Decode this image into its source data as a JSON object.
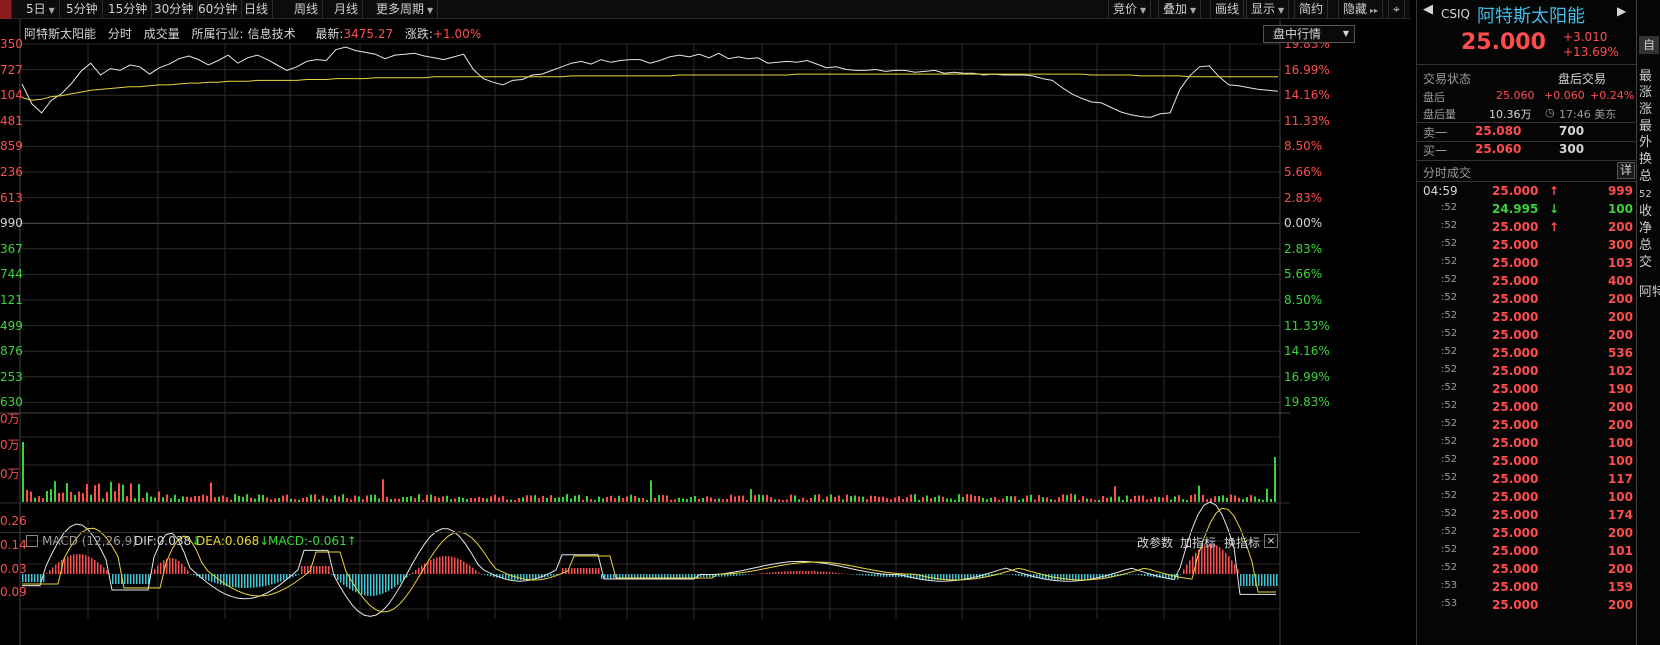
{
  "toolbar": {
    "left_items": [
      {
        "label": "",
        "active": true
      },
      {
        "label": "5日",
        "caret": true
      },
      {
        "label": "5分钟"
      },
      {
        "label": "15分钟"
      },
      {
        "label": "30分钟"
      },
      {
        "label": "60分钟"
      },
      {
        "label": "日线"
      },
      {
        "label": "周线"
      },
      {
        "label": "月线"
      },
      {
        "label": "更多周期",
        "caret": true
      }
    ],
    "right_items": [
      {
        "label": "竞价",
        "caret": true
      },
      {
        "label": "叠加",
        "caret": true
      },
      {
        "label": "画线"
      },
      {
        "label": "显示",
        "caret": true
      },
      {
        "label": "简约"
      },
      {
        "label": "隐藏",
        "suffix": "▸▸"
      },
      {
        "label": "⌖"
      }
    ]
  },
  "info": {
    "name": "阿特斯太阳能",
    "mode": "分时",
    "volume_label": "成交量",
    "industry_label": "所属行业:",
    "industry": "信息技术",
    "latest_label": "最新:",
    "latest": "3475.27",
    "change_label": "涨跌:",
    "change": "+1.00%"
  },
  "mode_select": "盘中行情",
  "left_axis": [
    "350",
    "727",
    "104",
    "481",
    "859",
    "236",
    "613",
    "990",
    "367",
    "744",
    "121",
    "499",
    "876",
    "253",
    "630"
  ],
  "right_axis": [
    "19.83%",
    "16.99%",
    "14.16%",
    "11.33%",
    "8.50%",
    "5.66%",
    "2.83%",
    "0.00%",
    "2.83%",
    "5.66%",
    "8.50%",
    "11.33%",
    "14.16%",
    "16.99%",
    "19.83%"
  ],
  "volume_axis": [
    "0万",
    "0万",
    "0万"
  ],
  "macd": {
    "title": "MACD (12,26,9)",
    "dif_label": "DIF:",
    "dif": "0.038",
    "dea_label": "DEA:",
    "dea": "0.068",
    "macd_label": "MACD:",
    "macd": "-0.061",
    "axis": [
      "0.26",
      "0.14",
      "0.03",
      "0.09"
    ],
    "buttons": [
      "改参数",
      "加指标",
      "换指标"
    ]
  },
  "chart_data": {
    "type": "line",
    "series": [
      {
        "name": "price",
        "values": [
          15.4,
          13.2,
          12.2,
          13.6,
          14.3,
          15.4,
          16.8,
          17.7,
          16.4,
          17.1,
          16.9,
          17.5,
          17.3,
          16.5,
          17.2,
          17.6,
          18.2,
          18.5,
          18.1,
          17.5,
          18.0,
          18.6,
          17.7,
          18.3,
          18.6,
          18.1,
          17.5,
          16.9,
          17.3,
          17.9,
          18.1,
          18.0,
          19.2,
          19.5,
          19.1,
          18.9,
          18.7,
          18.2,
          18.6,
          18.7,
          18.8,
          18.5,
          18.3,
          18.1,
          18.4,
          18.7,
          17.0,
          16.0,
          15.6,
          15.3,
          15.8,
          15.9,
          16.4,
          16.5,
          16.9,
          17.3,
          17.7,
          17.9,
          17.6,
          18.1,
          17.8,
          18.0,
          18.1,
          18.1,
          17.7,
          18.0,
          18.4,
          18.6,
          18.4,
          18.7,
          18.3,
          18.8,
          18.2,
          18.4,
          18.2,
          18.3,
          17.7,
          17.8,
          17.9,
          17.8,
          18.0,
          17.6,
          17.2,
          17.3,
          17.0,
          16.9,
          16.9,
          17.0,
          16.8,
          16.9,
          16.9,
          16.7,
          16.8,
          16.9,
          16.6,
          16.7,
          16.6,
          16.6,
          16.4,
          16.5,
          16.4,
          16.4,
          16.4,
          16.3,
          16.0,
          15.8,
          15.0,
          14.3,
          13.8,
          13.4,
          13.3,
          12.8,
          12.3,
          12.0,
          11.8,
          11.7,
          12.1,
          12.2,
          14.8,
          16.3,
          17.3,
          17.4,
          16.2,
          15.3,
          15.2,
          15.0,
          14.8,
          14.7,
          14.6
        ]
      },
      {
        "name": "average",
        "values": [
          13.9,
          13.6,
          13.7,
          14.0,
          14.1,
          14.3,
          14.5,
          14.7,
          14.8,
          14.9,
          15.0,
          15.1,
          15.1,
          15.2,
          15.3,
          15.3,
          15.4,
          15.5,
          15.5,
          15.6,
          15.6,
          15.7,
          15.7,
          15.7,
          15.8,
          15.8,
          15.8,
          15.8,
          15.8,
          15.9,
          15.9,
          15.9,
          16.0,
          16.0,
          16.0,
          16.0,
          16.1,
          16.1,
          16.1,
          16.1,
          16.1,
          16.1,
          16.2,
          16.2,
          16.2,
          16.2,
          16.2,
          16.2,
          16.2,
          16.2,
          16.2,
          16.2,
          16.2,
          16.2,
          16.2,
          16.2,
          16.3,
          16.3,
          16.3,
          16.3,
          16.3,
          16.3,
          16.3,
          16.3,
          16.3,
          16.3,
          16.3,
          16.4,
          16.4,
          16.4,
          16.4,
          16.4,
          16.4,
          16.4,
          16.4,
          16.4,
          16.4,
          16.4,
          16.4,
          16.5,
          16.5,
          16.5,
          16.5,
          16.5,
          16.5,
          16.5,
          16.5,
          16.5,
          16.5,
          16.5,
          16.5,
          16.5,
          16.5,
          16.5,
          16.5,
          16.5,
          16.5,
          16.5,
          16.5,
          16.5,
          16.5,
          16.5,
          16.5,
          16.5,
          16.5,
          16.5,
          16.5,
          16.5,
          16.5,
          16.4,
          16.4,
          16.4,
          16.4,
          16.4,
          16.3,
          16.3,
          16.3,
          16.3,
          16.3,
          16.2,
          16.2,
          16.2,
          16.2,
          16.2,
          16.2,
          16.2,
          16.2,
          16.2,
          16.2
        ]
      }
    ],
    "ylim": [
      -19.83,
      19.83
    ],
    "grid": true
  },
  "stock": {
    "code": "CSIQ",
    "name": "阿特斯太阳能",
    "price": "25.000",
    "change": "+3.010",
    "change_pct": "+13.69%",
    "edge_btn": "自"
  },
  "quote": {
    "status_label": "交易状态",
    "status": "盘后交易",
    "after_label": "盘后",
    "after_price": "25.060",
    "after_change": "+0.060",
    "after_pct": "+0.24%",
    "after_vol_label": "盘后量",
    "after_vol": "10.36万",
    "time": "17:46 美东",
    "sell_label": "卖一",
    "sell_price": "25.080",
    "sell_vol": "700",
    "buy_label": "买一",
    "buy_price": "25.060",
    "buy_vol": "300"
  },
  "ticks_header": {
    "title": "分时成交",
    "detail": "详"
  },
  "ticks": [
    {
      "time": "04:59",
      "price": "25.000",
      "arrow": "up",
      "vol": "999"
    },
    {
      "time": ":52",
      "price": "24.995",
      "arrow": "down",
      "vol": "100"
    },
    {
      "time": ":52",
      "price": "25.000",
      "arrow": "up",
      "vol": "200"
    },
    {
      "time": ":52",
      "price": "25.000",
      "vol": "300"
    },
    {
      "time": ":52",
      "price": "25.000",
      "vol": "103"
    },
    {
      "time": ":52",
      "price": "25.000",
      "vol": "400"
    },
    {
      "time": ":52",
      "price": "25.000",
      "vol": "200"
    },
    {
      "time": ":52",
      "price": "25.000",
      "vol": "200"
    },
    {
      "time": ":52",
      "price": "25.000",
      "vol": "200"
    },
    {
      "time": ":52",
      "price": "25.000",
      "vol": "536"
    },
    {
      "time": ":52",
      "price": "25.000",
      "vol": "102"
    },
    {
      "time": ":52",
      "price": "25.000",
      "vol": "190"
    },
    {
      "time": ":52",
      "price": "25.000",
      "vol": "200"
    },
    {
      "time": ":52",
      "price": "25.000",
      "vol": "200"
    },
    {
      "time": ":52",
      "price": "25.000",
      "vol": "100"
    },
    {
      "time": ":52",
      "price": "25.000",
      "vol": "100"
    },
    {
      "time": ":52",
      "price": "25.000",
      "vol": "117"
    },
    {
      "time": ":52",
      "price": "25.000",
      "vol": "100"
    },
    {
      "time": ":52",
      "price": "25.000",
      "vol": "174"
    },
    {
      "time": ":52",
      "price": "25.000",
      "vol": "200"
    },
    {
      "time": ":52",
      "price": "25.000",
      "vol": "101"
    },
    {
      "time": ":52",
      "price": "25.000",
      "vol": "200"
    },
    {
      "time": ":53",
      "price": "25.000",
      "vol": "159"
    },
    {
      "time": ":53",
      "price": "25.000",
      "vol": "200"
    }
  ],
  "side_column": [
    "最",
    "涨",
    "涨",
    "最",
    "外",
    "换",
    "总",
    "52",
    "收",
    "净",
    "总",
    "交",
    "",
    "阿特"
  ],
  "colors": {
    "up": "#ff4d4d",
    "down": "#3bd33b",
    "price_line": "#e6e6e6",
    "avg_line": "#e8d43a",
    "grid": "#2a2a2a"
  }
}
